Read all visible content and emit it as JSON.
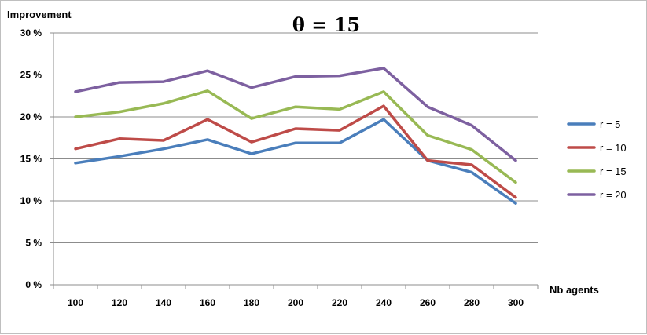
{
  "chart_data": {
    "type": "line",
    "title": "θ = 15",
    "ylabel": "Improvement",
    "xlabel": "Nb agents",
    "categories": [
      "100",
      "120",
      "140",
      "160",
      "180",
      "200",
      "220",
      "240",
      "260",
      "280",
      "300"
    ],
    "yticks": [
      "0 %",
      "5 %",
      "10 %",
      "15 %",
      "20 %",
      "25 %",
      "30 %"
    ],
    "ylim": [
      0,
      30
    ],
    "grid": true,
    "legend_position": "right",
    "series": [
      {
        "name": "r = 5",
        "color": "#4a7ebb",
        "values": [
          14.5,
          15.3,
          16.2,
          17.3,
          15.6,
          16.9,
          16.9,
          19.7,
          14.8,
          13.4,
          9.7
        ]
      },
      {
        "name": "r = 10",
        "color": "#be4b48",
        "values": [
          16.2,
          17.4,
          17.2,
          19.7,
          17.0,
          18.6,
          18.4,
          21.3,
          14.8,
          14.3,
          10.4
        ]
      },
      {
        "name": "r  = 15",
        "color": "#98b954",
        "values": [
          20.0,
          20.6,
          21.6,
          23.1,
          19.8,
          21.2,
          20.9,
          23.0,
          17.8,
          16.1,
          12.2
        ]
      },
      {
        "name": "r = 20",
        "color": "#7d60a0",
        "values": [
          23.0,
          24.1,
          24.2,
          25.5,
          23.5,
          24.8,
          24.9,
          25.8,
          21.2,
          19.0,
          14.8
        ]
      }
    ]
  }
}
